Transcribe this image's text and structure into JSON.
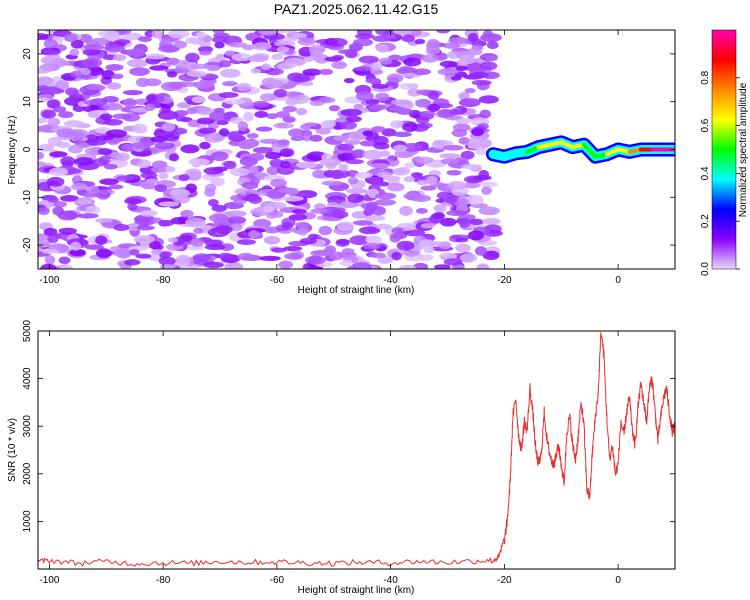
{
  "title": "PAZ1.2025.062.11.42.G15",
  "chart_data": [
    {
      "type": "heatmap",
      "title": "PAZ1.2025.062.11.42.G15",
      "xlabel": "Height of straight line (km)",
      "ylabel": "Frequency (Hz)",
      "xlim": [
        -102,
        10
      ],
      "ylim": [
        -25,
        25
      ],
      "xticks": [
        -100,
        -80,
        -60,
        -40,
        -20,
        0
      ],
      "yticks": [
        -20,
        -10,
        0,
        10,
        20
      ],
      "colorbar": {
        "label": "Normalized spectral amplitude",
        "range": [
          0,
          1
        ],
        "ticks": [
          0.0,
          0.2,
          0.4,
          0.6,
          0.8
        ],
        "colors": [
          "#e8d8f8",
          "#8800ff",
          "#0000ff",
          "#00ffff",
          "#00ff00",
          "#ffff00",
          "#ff8800",
          "#ff0000",
          "#ff00aa"
        ]
      },
      "signal_track": {
        "x": [
          -22,
          -20,
          -18,
          -16,
          -14,
          -12,
          -10,
          -8,
          -6,
          -4,
          -2,
          0,
          2,
          4,
          6,
          8,
          10
        ],
        "y": [
          -1.0,
          -1.5,
          -0.8,
          -0.5,
          0.5,
          1.0,
          1.5,
          0.5,
          1.0,
          -1.5,
          -1.0,
          0.0,
          -0.5,
          0.0,
          0.0,
          0.0,
          0.0
        ],
        "amplitude": [
          0.3,
          0.35,
          0.4,
          0.45,
          0.55,
          0.7,
          0.6,
          0.55,
          0.6,
          0.4,
          0.5,
          0.65,
          0.6,
          0.9,
          0.95,
          0.95,
          0.95
        ]
      },
      "noise_region": {
        "x_range": [
          -102,
          -22
        ],
        "amplitude_range": [
          0.0,
          0.3
        ]
      }
    },
    {
      "type": "line",
      "xlabel": "Height of straight line (km)",
      "ylabel": "SNR (10 * v/v)",
      "xlim": [
        -102,
        10
      ],
      "ylim": [
        0,
        5000
      ],
      "xticks": [
        -100,
        -80,
        -60,
        -40,
        -20,
        0
      ],
      "yticks": [
        1000,
        2000,
        3000,
        4000,
        5000
      ],
      "line_color": "#e83030",
      "series": [
        {
          "x": [
            -102,
            -100,
            -95,
            -90,
            -85,
            -80,
            -75,
            -70,
            -65,
            -60,
            -55,
            -50,
            -45,
            -40,
            -35,
            -30,
            -25,
            -22,
            -21,
            -20,
            -19.5,
            -19,
            -18.5,
            -18,
            -17.5,
            -17,
            -16.5,
            -16,
            -15.5,
            -15,
            -14.5,
            -14,
            -13.5,
            -13,
            -12.5,
            -12,
            -11.5,
            -11,
            -10.5,
            -10,
            -9.5,
            -9,
            -8.5,
            -8,
            -7.5,
            -7,
            -6.5,
            -6,
            -5.5,
            -5,
            -4.5,
            -4,
            -3.5,
            -3,
            -2.5,
            -2,
            -1.5,
            -1,
            -0.5,
            0,
            0.5,
            1,
            1.5,
            2,
            2.5,
            3,
            3.5,
            4,
            4.5,
            5,
            5.5,
            6,
            6.5,
            7,
            7.5,
            8,
            8.5,
            9,
            9.5,
            10
          ],
          "y": [
            150,
            180,
            120,
            160,
            110,
            130,
            120,
            160,
            140,
            150,
            130,
            120,
            140,
            130,
            160,
            140,
            170,
            180,
            250,
            600,
            1000,
            1800,
            3200,
            3600,
            2800,
            2500,
            3100,
            2900,
            3800,
            3300,
            2500,
            2200,
            2400,
            3300,
            2700,
            2400,
            2200,
            2300,
            2600,
            2200,
            1800,
            2900,
            3200,
            2600,
            2300,
            2800,
            3500,
            3000,
            1700,
            1500,
            2500,
            3200,
            3700,
            5000,
            4500,
            3200,
            2300,
            2600,
            2000,
            2200,
            3100,
            2800,
            3300,
            3600,
            2900,
            2600,
            3400,
            3900,
            3500,
            3100,
            3800,
            4000,
            3300,
            2700,
            3200,
            3600,
            3800,
            3300,
            2900,
            3000
          ]
        }
      ]
    }
  ]
}
